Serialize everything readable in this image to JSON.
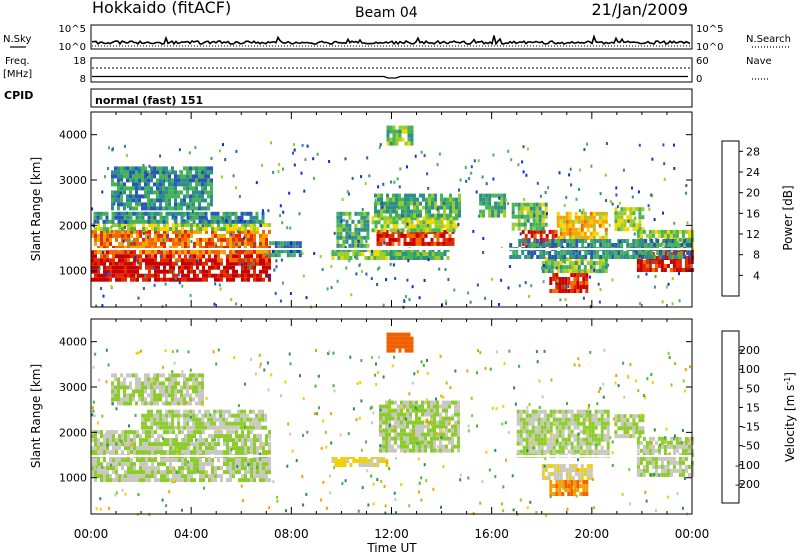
{
  "header": {
    "station": "Hokkaido (fitACF)",
    "beam": "Beam 04",
    "date": "21/Jan/2009"
  },
  "strip_nsky": {
    "label": "N.Sky",
    "right_label": "N.Search",
    "ticks_left": [
      "10^5",
      "10^0"
    ],
    "ticks_right": [
      "10^5",
      "10^0"
    ],
    "ylim_log10": [
      0,
      5
    ]
  },
  "strip_freq": {
    "label_line1": "Freq.",
    "label_line2": "[MHz]",
    "right_label": "Nave",
    "ticks_left": [
      "18",
      "8"
    ],
    "ticks_right": [
      "60",
      "0"
    ],
    "freq_ylim_mhz": [
      8,
      18
    ],
    "nave_ylim": [
      0,
      60
    ]
  },
  "cpid": {
    "label": "CPID",
    "text": "normal (fast) 151"
  },
  "chart_data": [
    {
      "type": "heatmap",
      "name": "power",
      "ylabel": "Slant Range [km]",
      "xlabel": "Time UT",
      "ylim": [
        200,
        4500
      ],
      "yticks": [
        "1000",
        "2000",
        "3000",
        "4000"
      ],
      "xticks": [
        "00:00",
        "04:00",
        "08:00",
        "12:00",
        "16:00",
        "20:00",
        "00:00"
      ],
      "colorbar": {
        "label": "Power [dB]",
        "ticks": [
          "4",
          "8",
          "12",
          "16",
          "20",
          "24",
          "28"
        ],
        "range": [
          0,
          30
        ],
        "colors": [
          "#0b2fd9",
          "#2a56b8",
          "#2e8f8a",
          "#46b356",
          "#9ccc2a",
          "#f0d800",
          "#f5a300",
          "#f06a00",
          "#e02a00",
          "#c80000"
        ]
      },
      "regions": [
        {
          "t": [
            0.0,
            7.1
          ],
          "r": [
            820,
            1200
          ],
          "level": 28
        },
        {
          "t": [
            0.0,
            7.1
          ],
          "r": [
            1200,
            1450
          ],
          "level": 26
        },
        {
          "t": [
            0.0,
            7.1
          ],
          "r": [
            1450,
            1900
          ],
          "level": 22
        },
        {
          "t": [
            0.0,
            7.1
          ],
          "r": [
            1900,
            2050
          ],
          "level": 14
        },
        {
          "t": [
            0.1,
            6.9
          ],
          "r": [
            2050,
            2300
          ],
          "level": 8
        },
        {
          "t": [
            0.8,
            4.8
          ],
          "r": [
            2400,
            3300
          ],
          "level": 8
        },
        {
          "t": [
            7.1,
            8.3
          ],
          "r": [
            1350,
            1650
          ],
          "level": 6
        },
        {
          "t": [
            9.6,
            13.0
          ],
          "r": [
            1250,
            1500
          ],
          "level": 14
        },
        {
          "t": [
            9.8,
            11.0
          ],
          "r": [
            1500,
            2300
          ],
          "level": 10
        },
        {
          "t": [
            11.8,
            14.2
          ],
          "r": [
            1300,
            1500
          ],
          "level": 10
        },
        {
          "t": [
            11.4,
            14.4
          ],
          "r": [
            1600,
            1900
          ],
          "level": 26
        },
        {
          "t": [
            11.2,
            14.6
          ],
          "r": [
            1900,
            2200
          ],
          "level": 14
        },
        {
          "t": [
            11.3,
            14.7
          ],
          "r": [
            2200,
            2700
          ],
          "level": 10
        },
        {
          "t": [
            11.8,
            12.8
          ],
          "r": [
            3800,
            4200
          ],
          "level": 12
        },
        {
          "t": [
            15.5,
            16.5
          ],
          "r": [
            2200,
            2700
          ],
          "level": 10
        },
        {
          "t": [
            17.2,
            18.6
          ],
          "r": [
            1500,
            1900
          ],
          "level": 26
        },
        {
          "t": [
            16.8,
            18.2
          ],
          "r": [
            1900,
            2500
          ],
          "level": 12
        },
        {
          "t": [
            18.6,
            20.6
          ],
          "r": [
            1700,
            2300
          ],
          "level": 18
        },
        {
          "t": [
            18.3,
            19.8
          ],
          "r": [
            550,
            950
          ],
          "level": 27
        },
        {
          "t": [
            18.0,
            20.6
          ],
          "r": [
            950,
            1300
          ],
          "level": 12
        },
        {
          "t": [
            20.9,
            22.0
          ],
          "r": [
            1900,
            2400
          ],
          "level": 14
        },
        {
          "t": [
            21.8,
            24.0
          ],
          "r": [
            1050,
            1500
          ],
          "level": 27
        },
        {
          "t": [
            21.8,
            24.0
          ],
          "r": [
            1500,
            1900
          ],
          "level": 13
        },
        {
          "t": [
            16.7,
            24.0
          ],
          "r": [
            1300,
            1700
          ],
          "level": 8
        }
      ]
    },
    {
      "type": "heatmap",
      "name": "velocity",
      "ylabel": "Slant Range [km]",
      "xlabel": "Time UT",
      "ylim": [
        200,
        4500
      ],
      "yticks": [
        "1000",
        "2000",
        "3000",
        "4000"
      ],
      "xticks": [
        "00:00",
        "04:00",
        "08:00",
        "12:00",
        "16:00",
        "20:00",
        "00:00"
      ],
      "colorbar": {
        "label": "Velocity [m s^-1]",
        "ticks": [
          "200",
          "100",
          "50",
          "15",
          "-15",
          "-50",
          "-100",
          "-200"
        ],
        "range": [
          -250,
          250
        ],
        "colors": [
          "#1f3fc0",
          "#2b65b0",
          "#2e8a5c",
          "#44b340",
          "#8ccc2a",
          "#c8c8c0",
          "#f0d000",
          "#f5a000",
          "#f06000",
          "#e02000"
        ]
      },
      "regions": [
        {
          "t": [
            0.0,
            7.1
          ],
          "r": [
            950,
            2050
          ],
          "level": 0
        },
        {
          "t": [
            2.0,
            7.0
          ],
          "r": [
            2100,
            2500
          ],
          "level": 0
        },
        {
          "t": [
            0.8,
            4.5
          ],
          "r": [
            2600,
            3300
          ],
          "level": 0
        },
        {
          "t": [
            9.6,
            11.8
          ],
          "r": [
            1250,
            1500
          ],
          "level": 60
        },
        {
          "t": [
            11.5,
            14.7
          ],
          "r": [
            1600,
            2700
          ],
          "level": 0
        },
        {
          "t": [
            11.8,
            12.8
          ],
          "r": [
            3800,
            4200
          ],
          "level": 180
        },
        {
          "t": [
            17.0,
            20.6
          ],
          "r": [
            1500,
            2500
          ],
          "level": 0
        },
        {
          "t": [
            18.3,
            19.8
          ],
          "r": [
            600,
            950
          ],
          "level": 150
        },
        {
          "t": [
            18.0,
            20.0
          ],
          "r": [
            950,
            1300
          ],
          "level": 45
        },
        {
          "t": [
            20.9,
            22.0
          ],
          "r": [
            1900,
            2400
          ],
          "level": 0
        },
        {
          "t": [
            21.8,
            24.0
          ],
          "r": [
            1050,
            1900
          ],
          "level": 0
        }
      ]
    }
  ]
}
